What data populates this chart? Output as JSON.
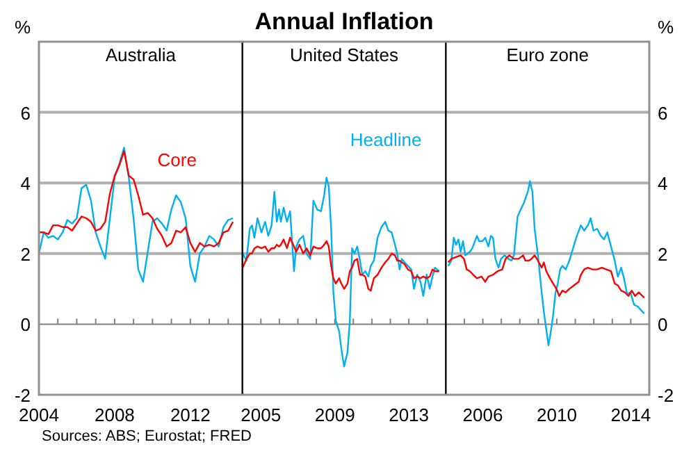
{
  "chart_data": [
    {
      "type": "line",
      "subtitle": "Australia",
      "ylabel": "%",
      "annotations": [
        "Sources: ABS; Eurostat; FRED"
      ],
      "xlim": [
        2004,
        2014.75
      ],
      "ylim": [
        -2,
        8
      ],
      "xticks": [
        2004,
        {
          "value": 2005,
          "label": null
        },
        {
          "value": 2006,
          "label": null
        },
        {
          "value": 2007,
          "label": null
        },
        2008,
        {
          "value": 2009,
          "label": null
        },
        {
          "value": 2010,
          "label": null
        },
        {
          "value": 2011,
          "label": null
        },
        2012,
        {
          "value": 2013,
          "label": null
        },
        {
          "value": 2014,
          "label": null
        }
      ],
      "yticks": [
        -2,
        0,
        2,
        4,
        6
      ],
      "grid": "y",
      "series": [
        {
          "color": "#00b0f0",
          "x": [
            2004,
            2004.25,
            2004.5,
            2004.75,
            2005,
            2005.25,
            2005.5,
            2005.75,
            2006,
            2006.25,
            2006.5,
            2006.75,
            2007,
            2007.25,
            2007.5,
            2007.75,
            2008,
            2008.25,
            2008.5,
            2008.75,
            2009,
            2009.25,
            2009.5,
            2009.75,
            2010,
            2010.25,
            2010.5,
            2010.75,
            2011,
            2011.25,
            2011.5,
            2011.75,
            2012,
            2012.25,
            2012.5,
            2012.75,
            2013,
            2013.25,
            2013.5,
            2013.75,
            2014,
            2014.25
          ],
          "values": [
            2.0,
            2.6,
            2.45,
            2.5,
            2.4,
            2.6,
            2.95,
            2.85,
            3.0,
            3.85,
            3.95,
            3.5,
            2.6,
            2.2,
            1.85,
            3.0,
            4.15,
            4.55,
            5.0,
            4.15,
            3.0,
            1.55,
            1.2,
            2.05,
            2.9,
            3.0,
            2.85,
            2.65,
            3.25,
            3.65,
            3.45,
            3.0,
            1.65,
            1.2,
            2.0,
            2.2,
            2.5,
            2.4,
            2.2,
            2.75,
            2.95,
            3.0
          ]
        },
        {
          "name": "Core",
          "color": "#ff0000",
          "x": [
            2004,
            2004.25,
            2004.5,
            2004.75,
            2005,
            2005.25,
            2005.5,
            2005.75,
            2006,
            2006.25,
            2006.5,
            2006.75,
            2007,
            2007.25,
            2007.5,
            2007.75,
            2008,
            2008.25,
            2008.5,
            2008.75,
            2009,
            2009.25,
            2009.5,
            2009.75,
            2010,
            2010.25,
            2010.5,
            2010.75,
            2011,
            2011.25,
            2011.5,
            2011.75,
            2012,
            2012.25,
            2012.5,
            2012.75,
            2013,
            2013.25,
            2013.5,
            2013.75,
            2014,
            2014.25
          ],
          "values": [
            2.6,
            2.6,
            2.55,
            2.8,
            2.8,
            2.75,
            2.75,
            2.65,
            2.85,
            3.05,
            3.0,
            2.9,
            2.65,
            2.7,
            2.9,
            3.7,
            4.2,
            4.5,
            4.9,
            4.2,
            4.1,
            3.65,
            3.1,
            3.15,
            3.0,
            2.7,
            2.5,
            2.2,
            2.3,
            2.65,
            2.6,
            2.75,
            2.3,
            2.05,
            2.3,
            2.2,
            2.25,
            2.2,
            2.3,
            2.6,
            2.65,
            2.9
          ]
        }
      ]
    },
    {
      "type": "line",
      "title": "Annual Inflation",
      "subtitle": "United States",
      "xlim": [
        2004,
        2015
      ],
      "ylim": [
        -2,
        8
      ],
      "tick_labels": "x",
      "xticks": [
        2005,
        {
          "value": 2006,
          "label": null
        },
        {
          "value": 2007,
          "label": null
        },
        {
          "value": 2008,
          "label": null
        },
        2009,
        {
          "value": 2010,
          "label": null
        },
        {
          "value": 2011,
          "label": null
        },
        {
          "value": 2012,
          "label": null
        },
        2013,
        {
          "value": 2014,
          "label": null
        }
      ],
      "yticks": [
        -2,
        0,
        2,
        4,
        6
      ],
      "grid": "y",
      "series": [
        {
          "name": "Headline",
          "color": "#00b0f0",
          "x": [
            2004.02,
            2004.22,
            2004.4,
            2004.52,
            2004.65,
            2004.82,
            2005.03,
            2005.23,
            2005.4,
            2005.58,
            2005.73,
            2005.86,
            2005.98,
            2006.08,
            2006.23,
            2006.41,
            2006.58,
            2006.79,
            2006.91,
            2007.09,
            2007.29,
            2007.47,
            2007.67,
            2007.84,
            2008.04,
            2008.25,
            2008.42,
            2008.55,
            2008.67,
            2008.8,
            2008.92,
            2009.05,
            2009.23,
            2009.35,
            2009.5,
            2009.68,
            2009.81,
            2009.93,
            2010.06,
            2010.21,
            2010.36,
            2010.48,
            2010.64,
            2010.81,
            2010.94,
            2011.11,
            2011.31,
            2011.52,
            2011.72,
            2011.89,
            2012.07,
            2012.25,
            2012.37,
            2012.5,
            2012.62,
            2012.77,
            2012.95,
            2013.13,
            2013.28,
            2013.45,
            2013.63,
            2013.78,
            2013.96,
            2014.13,
            2014.28,
            2014.41,
            2014.64
          ],
          "values": [
            2.0,
            1.8,
            2.7,
            2.8,
            2.45,
            3.0,
            2.6,
            2.9,
            2.5,
            2.8,
            3.75,
            2.9,
            3.25,
            2.9,
            3.3,
            2.9,
            3.2,
            1.5,
            2.2,
            2.4,
            2.5,
            2.0,
            1.85,
            3.5,
            3.25,
            3.2,
            3.65,
            4.15,
            3.9,
            2.7,
            0.9,
            0.1,
            -0.2,
            -0.7,
            -1.2,
            -0.8,
            0.1,
            2.15,
            2.0,
            2.2,
            1.8,
            1.4,
            1.5,
            1.35,
            1.65,
            1.8,
            2.45,
            2.75,
            2.9,
            2.65,
            2.6,
            2.25,
            2.0,
            1.55,
            1.85,
            1.75,
            1.65,
            1.55,
            1.0,
            1.4,
            1.2,
            0.8,
            1.4,
            1.0,
            1.35,
            1.6,
            1.5
          ]
        },
        {
          "color": "#ff0000",
          "x": [
            2004.02,
            2004.22,
            2004.4,
            2004.52,
            2004.65,
            2004.82,
            2005.03,
            2005.23,
            2005.4,
            2005.58,
            2005.73,
            2005.86,
            2005.98,
            2006.08,
            2006.23,
            2006.41,
            2006.58,
            2006.79,
            2006.91,
            2007.09,
            2007.29,
            2007.47,
            2007.67,
            2007.84,
            2008.04,
            2008.25,
            2008.42,
            2008.55,
            2008.67,
            2008.8,
            2008.92,
            2009.05,
            2009.23,
            2009.35,
            2009.5,
            2009.68,
            2009.81,
            2009.93,
            2010.06,
            2010.21,
            2010.36,
            2010.48,
            2010.64,
            2010.81,
            2010.94,
            2011.11,
            2011.31,
            2011.52,
            2011.72,
            2011.89,
            2012.07,
            2012.25,
            2012.37,
            2012.5,
            2012.62,
            2012.77,
            2012.95,
            2013.13,
            2013.28,
            2013.45,
            2013.63,
            2013.78,
            2013.96,
            2014.13,
            2014.28,
            2014.41,
            2014.64
          ],
          "values": [
            1.6,
            1.85,
            2.0,
            2.0,
            2.15,
            2.2,
            2.15,
            2.2,
            2.05,
            2.15,
            2.15,
            2.25,
            2.2,
            2.25,
            2.4,
            2.15,
            2.45,
            2.2,
            2.05,
            2.25,
            2.0,
            2.15,
            1.95,
            2.2,
            2.15,
            2.15,
            2.25,
            2.35,
            2.2,
            1.65,
            1.3,
            1.15,
            1.3,
            1.15,
            1.0,
            1.15,
            1.5,
            1.6,
            1.8,
            1.85,
            1.4,
            1.4,
            1.35,
            1.0,
            0.95,
            1.3,
            1.4,
            1.6,
            1.75,
            1.85,
            2.0,
            1.95,
            1.8,
            1.8,
            1.75,
            1.7,
            1.55,
            1.5,
            1.3,
            1.35,
            1.3,
            1.35,
            1.3,
            1.35,
            1.55,
            1.5,
            1.5
          ]
        }
      ]
    },
    {
      "type": "line",
      "subtitle": "Euro zone",
      "ylabel": "%",
      "xlim": [
        2004,
        2015
      ],
      "ylim": [
        -2,
        8
      ],
      "xticks": [
        {
          "value": 2005,
          "label": null
        },
        2006,
        {
          "value": 2007,
          "label": null
        },
        {
          "value": 2008,
          "label": null
        },
        {
          "value": 2009,
          "label": null
        },
        2010,
        {
          "value": 2011,
          "label": null
        },
        {
          "value": 2012,
          "label": null
        },
        {
          "value": 2013,
          "label": null
        },
        2014
      ],
      "yticks": [
        -2,
        0,
        2,
        4,
        6
      ],
      "grid": "y",
      "series": [
        {
          "color": "#00b0f0",
          "x": [
            2004.13,
            2004.3,
            2004.43,
            2004.55,
            2004.68,
            2004.8,
            2004.93,
            2005.05,
            2005.18,
            2005.3,
            2005.43,
            2005.68,
            2005.8,
            2005.98,
            2006.13,
            2006.3,
            2006.43,
            2006.55,
            2006.68,
            2006.85,
            2006.98,
            2007.18,
            2007.38,
            2007.55,
            2007.68,
            2007.88,
            2008.05,
            2008.23,
            2008.43,
            2008.55,
            2008.68,
            2008.8,
            2008.98,
            2009.18,
            2009.3,
            2009.43,
            2009.55,
            2009.68,
            2009.8,
            2009.93,
            2010.05,
            2010.18,
            2010.3,
            2010.48,
            2010.68,
            2010.88,
            2011.05,
            2011.3,
            2011.48,
            2011.68,
            2011.83,
            2011.98,
            2012.18,
            2012.38,
            2012.55,
            2012.73,
            2012.93,
            2013.13,
            2013.3,
            2013.48,
            2013.63,
            2013.8,
            2013.98,
            2014.18,
            2014.38,
            2014.55,
            2014.73
          ],
          "values": [
            1.65,
            1.8,
            2.45,
            2.25,
            2.4,
            2.05,
            2.35,
            1.95,
            2.0,
            2.05,
            2.15,
            2.5,
            2.35,
            2.35,
            2.45,
            2.2,
            2.5,
            2.45,
            1.85,
            1.6,
            1.85,
            1.95,
            1.85,
            1.8,
            1.95,
            3.05,
            3.25,
            3.45,
            3.75,
            4.05,
            3.75,
            2.7,
            1.95,
            0.9,
            0.35,
            -0.15,
            -0.6,
            -0.2,
            0.25,
            0.9,
            1.15,
            1.55,
            1.65,
            1.55,
            1.8,
            2.15,
            2.45,
            2.8,
            2.65,
            2.8,
            3.0,
            2.65,
            2.7,
            2.5,
            2.4,
            2.6,
            2.2,
            1.8,
            1.35,
            1.6,
            1.3,
            0.85,
            0.9,
            0.55,
            0.5,
            0.4,
            0.3
          ]
        },
        {
          "color": "#ff0000",
          "x": [
            2004.13,
            2004.3,
            2004.55,
            2004.8,
            2004.98,
            2005.13,
            2005.3,
            2005.48,
            2005.68,
            2005.93,
            2006.13,
            2006.3,
            2006.55,
            2006.8,
            2007.05,
            2007.23,
            2007.43,
            2007.68,
            2007.93,
            2008.18,
            2008.3,
            2008.48,
            2008.63,
            2008.8,
            2008.98,
            2009.18,
            2009.3,
            2009.43,
            2009.63,
            2009.8,
            2009.98,
            2010.13,
            2010.3,
            2010.48,
            2010.68,
            2010.93,
            2011.18,
            2011.3,
            2011.48,
            2011.68,
            2011.93,
            2012.18,
            2012.43,
            2012.68,
            2012.93,
            2013.13,
            2013.3,
            2013.48,
            2013.68,
            2013.88,
            2014.05,
            2014.23,
            2014.43,
            2014.63,
            2014.73
          ],
          "values": [
            1.75,
            1.85,
            1.9,
            1.95,
            1.85,
            1.55,
            1.5,
            1.4,
            1.3,
            1.35,
            1.2,
            1.35,
            1.4,
            1.5,
            1.55,
            1.85,
            1.95,
            1.85,
            1.85,
            1.95,
            1.8,
            1.8,
            1.85,
            1.95,
            1.8,
            1.6,
            1.75,
            1.5,
            1.3,
            1.15,
            1.0,
            0.8,
            0.95,
            0.9,
            1.0,
            1.1,
            1.2,
            1.4,
            1.55,
            1.6,
            1.55,
            1.55,
            1.6,
            1.55,
            1.5,
            1.15,
            1.1,
            0.95,
            0.9,
            0.8,
            0.95,
            0.8,
            0.9,
            0.8,
            0.75
          ]
        }
      ]
    }
  ]
}
